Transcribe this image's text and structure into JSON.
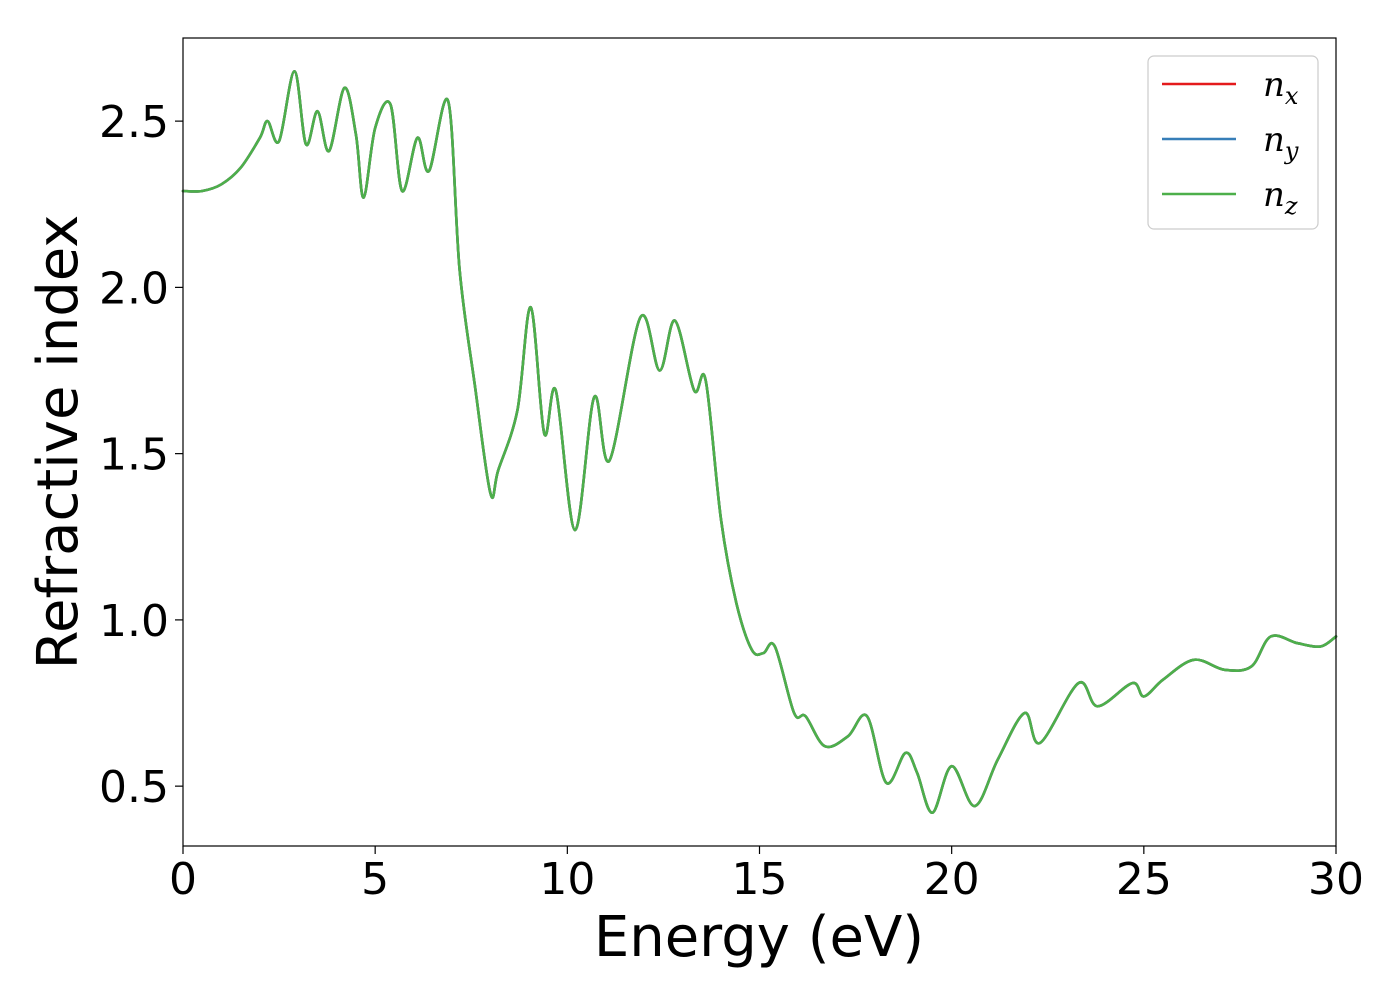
{
  "chart_data": {
    "type": "line",
    "xlabel": "Energy (eV)",
    "ylabel": "Refractive index",
    "xlim": [
      0,
      30
    ],
    "ylim": [
      0.32,
      2.75
    ],
    "xticks": [
      0,
      5,
      10,
      15,
      20,
      25,
      30
    ],
    "xtick_labels": [
      "0",
      "5",
      "10",
      "15",
      "20",
      "25",
      "30"
    ],
    "yticks": [
      0.5,
      1.0,
      1.5,
      2.0,
      2.5
    ],
    "ytick_labels": [
      "0.5",
      "1.0",
      "1.5",
      "2.0",
      "2.5"
    ],
    "grid": false,
    "legend_position": "top-right",
    "x": [
      0,
      0.5,
      1.0,
      1.5,
      2.0,
      2.2,
      2.5,
      2.9,
      3.2,
      3.5,
      3.8,
      4.2,
      4.5,
      4.7,
      5.0,
      5.4,
      5.7,
      6.1,
      6.4,
      6.9,
      7.2,
      7.6,
      8.0,
      8.2,
      8.7,
      9.05,
      9.4,
      9.7,
      10.2,
      10.7,
      11.1,
      11.9,
      12.4,
      12.8,
      13.3,
      13.6,
      14.0,
      14.4,
      14.8,
      15.1,
      15.4,
      15.9,
      16.2,
      16.7,
      17.3,
      17.8,
      18.3,
      18.8,
      19.1,
      19.5,
      20.0,
      20.6,
      21.2,
      21.9,
      22.3,
      23.3,
      23.8,
      24.7,
      25.0,
      25.5,
      26.3,
      27.1,
      27.8,
      28.3,
      29.0,
      29.6,
      30.0
    ],
    "series": [
      {
        "name": "n_x",
        "color": "#e41a1c",
        "values": [
          2.29,
          2.29,
          2.31,
          2.36,
          2.45,
          2.5,
          2.44,
          2.65,
          2.43,
          2.53,
          2.41,
          2.6,
          2.46,
          2.27,
          2.48,
          2.55,
          2.29,
          2.45,
          2.35,
          2.56,
          2.05,
          1.7,
          1.38,
          1.45,
          1.63,
          1.94,
          1.56,
          1.69,
          1.27,
          1.67,
          1.48,
          1.91,
          1.75,
          1.9,
          1.69,
          1.72,
          1.3,
          1.05,
          0.91,
          0.9,
          0.92,
          0.72,
          0.71,
          0.62,
          0.65,
          0.71,
          0.51,
          0.6,
          0.54,
          0.42,
          0.56,
          0.44,
          0.58,
          0.72,
          0.63,
          0.81,
          0.74,
          0.81,
          0.77,
          0.82,
          0.88,
          0.85,
          0.86,
          0.95,
          0.93,
          0.92,
          0.95
        ]
      },
      {
        "name": "n_y",
        "color": "#377eb8",
        "values": [
          2.29,
          2.29,
          2.31,
          2.36,
          2.45,
          2.5,
          2.44,
          2.65,
          2.43,
          2.53,
          2.41,
          2.6,
          2.46,
          2.27,
          2.48,
          2.55,
          2.29,
          2.45,
          2.35,
          2.56,
          2.05,
          1.7,
          1.38,
          1.45,
          1.63,
          1.94,
          1.56,
          1.69,
          1.27,
          1.67,
          1.48,
          1.91,
          1.75,
          1.9,
          1.69,
          1.72,
          1.3,
          1.05,
          0.91,
          0.9,
          0.92,
          0.72,
          0.71,
          0.62,
          0.65,
          0.71,
          0.51,
          0.6,
          0.54,
          0.42,
          0.56,
          0.44,
          0.58,
          0.72,
          0.63,
          0.81,
          0.74,
          0.81,
          0.77,
          0.82,
          0.88,
          0.85,
          0.86,
          0.95,
          0.93,
          0.92,
          0.95
        ]
      },
      {
        "name": "n_z",
        "color": "#4daf4a",
        "values": [
          2.29,
          2.29,
          2.31,
          2.36,
          2.45,
          2.5,
          2.44,
          2.65,
          2.43,
          2.53,
          2.41,
          2.6,
          2.46,
          2.27,
          2.48,
          2.55,
          2.29,
          2.45,
          2.35,
          2.56,
          2.05,
          1.7,
          1.38,
          1.45,
          1.63,
          1.94,
          1.56,
          1.69,
          1.27,
          1.67,
          1.48,
          1.91,
          1.75,
          1.9,
          1.69,
          1.72,
          1.3,
          1.05,
          0.91,
          0.9,
          0.92,
          0.72,
          0.71,
          0.62,
          0.65,
          0.71,
          0.51,
          0.6,
          0.54,
          0.42,
          0.56,
          0.44,
          0.58,
          0.72,
          0.63,
          0.81,
          0.74,
          0.81,
          0.77,
          0.82,
          0.88,
          0.85,
          0.86,
          0.95,
          0.93,
          0.92,
          0.95
        ]
      }
    ],
    "legend": [
      {
        "base": "n",
        "sub": "x",
        "color": "#e41a1c"
      },
      {
        "base": "n",
        "sub": "y",
        "color": "#377eb8"
      },
      {
        "base": "n",
        "sub": "z",
        "color": "#4daf4a"
      }
    ]
  }
}
